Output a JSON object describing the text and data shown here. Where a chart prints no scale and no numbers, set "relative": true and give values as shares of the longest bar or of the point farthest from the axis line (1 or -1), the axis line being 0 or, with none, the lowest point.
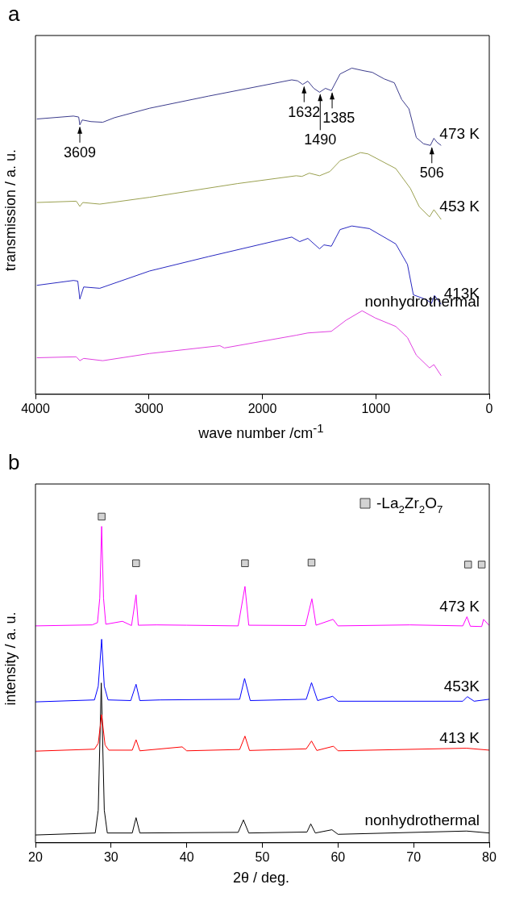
{
  "chart_data": [
    {
      "type": "line",
      "title": "a",
      "xlabel": "wave number /cm$^{-1}$",
      "ylabel": "transmission / a. u.",
      "relative": true,
      "xlim": [
        4000,
        0
      ],
      "xticks": [
        4000,
        3000,
        2000,
        1000,
        0
      ],
      "series": [
        {
          "name": "473 K",
          "color": "#3c3c8c",
          "x": [
            3988,
            3665,
            3619,
            3609,
            3588,
            3510,
            3407,
            3304,
            2994,
            2477,
            1741,
            1689,
            1645,
            1599,
            1547,
            1496,
            1444,
            1392,
            1315,
            1212,
            1108,
            1031,
            927,
            837,
            772,
            708,
            643,
            579,
            519,
            488,
            462,
            424
          ],
          "values": [
            0.844,
            0.853,
            0.85,
            0.826,
            0.841,
            0.836,
            0.834,
            0.848,
            0.877,
            0.914,
            0.964,
            0.961,
            0.95,
            0.96,
            0.938,
            0.926,
            0.938,
            0.931,
            0.982,
            1,
            0.992,
            0.987,
            0.967,
            0.955,
            0.904,
            0.875,
            0.787,
            0.768,
            0.763,
            0.785,
            0.773,
            0.763
          ]
        },
        {
          "name": "453 K",
          "color": "#9aa050",
          "x": [
            3988,
            3640,
            3609,
            3583,
            3433,
            2994,
            2219,
            1702,
            1651,
            1586,
            1496,
            1405,
            1315,
            1134,
            1069,
            824,
            695,
            617,
            527,
            488,
            424
          ],
          "values": [
            0.588,
            0.592,
            0.576,
            0.588,
            0.583,
            0.604,
            0.646,
            0.67,
            0.668,
            0.678,
            0.67,
            0.683,
            0.716,
            0.741,
            0.737,
            0.692,
            0.631,
            0.575,
            0.544,
            0.566,
            0.536
          ]
        },
        {
          "name": "413K",
          "color": "#2828c0",
          "x": [
            3988,
            3665,
            3627,
            3609,
            3575,
            3433,
            2994,
            2477,
            1741,
            1671,
            1599,
            1496,
            1457,
            1392,
            1315,
            1212,
            1057,
            824,
            721,
            669,
            553,
            509,
            483,
            424
          ],
          "values": [
            0.334,
            0.349,
            0.347,
            0.292,
            0.329,
            0.325,
            0.378,
            0.422,
            0.482,
            0.468,
            0.478,
            0.446,
            0.458,
            0.454,
            0.505,
            0.516,
            0.508,
            0.461,
            0.398,
            0.305,
            0.29,
            0.279,
            0.303,
            0.276
          ]
        },
        {
          "name": "nonhydrothermal",
          "color": "#e040e0",
          "x": [
            3988,
            3640,
            3609,
            3575,
            3407,
            2994,
            2374,
            2335,
            1702,
            1599,
            1392,
            1263,
            1121,
            1005,
            824,
            721,
            643,
            527,
            488,
            424
          ],
          "values": [
            0.112,
            0.115,
            0.103,
            0.11,
            0.103,
            0.125,
            0.149,
            0.142,
            0.181,
            0.188,
            0.193,
            0.227,
            0.256,
            0.234,
            0.208,
            0.174,
            0.12,
            0.081,
            0.091,
            0.057
          ]
        }
      ],
      "annotations": [
        {
          "text": "3609",
          "x": 3609,
          "y": 0.826
        },
        {
          "text": "1632",
          "x": 1632,
          "y": 0.95
        },
        {
          "text": "1490",
          "x": 1490,
          "y": 0.926
        },
        {
          "text": "1385",
          "x": 1385,
          "y": 0.931
        },
        {
          "text": "506",
          "x": 506,
          "y": 0.763
        }
      ]
    },
    {
      "type": "line",
      "title": "b",
      "xlabel": "2θ  / deg.",
      "ylabel": "intensity / a. u.",
      "relative": true,
      "xlim": [
        20,
        80
      ],
      "xticks": [
        20,
        30,
        40,
        50,
        60,
        70,
        80
      ],
      "legend": "top right",
      "series": [
        {
          "name": "473 K",
          "color": "#ff00ff",
          "x": [
            20,
            27.5,
            28.2,
            28.5,
            28.75,
            29.0,
            29.3,
            31.5,
            32.7,
            33.3,
            33.6,
            36,
            40,
            46.8,
            47.7,
            48.2,
            55.7,
            56.55,
            57.1,
            59.35,
            60,
            69.5,
            76.5,
            77.05,
            77.5,
            79,
            79.25,
            80
          ],
          "values": [
            0.665,
            0.668,
            0.675,
            0.75,
            0.97,
            0.75,
            0.67,
            0.679,
            0.666,
            0.76,
            0.667,
            0.668,
            0.667,
            0.665,
            0.786,
            0.667,
            0.666,
            0.748,
            0.667,
            0.685,
            0.665,
            0.668,
            0.665,
            0.693,
            0.664,
            0.663,
            0.685,
            0.666
          ]
        },
        {
          "name": "453K",
          "color": "#0000ff",
          "x": [
            20,
            27.8,
            28.3,
            28.75,
            29.1,
            29.6,
            32.6,
            33.3,
            33.8,
            36.5,
            47.0,
            47.65,
            48.4,
            55.8,
            56.5,
            57.3,
            59.3,
            60,
            76.5,
            77.1,
            78,
            80
          ],
          "values": [
            0.432,
            0.438,
            0.48,
            0.624,
            0.48,
            0.438,
            0.436,
            0.486,
            0.436,
            0.438,
            0.44,
            0.504,
            0.436,
            0.44,
            0.491,
            0.436,
            0.449,
            0.434,
            0.434,
            0.448,
            0.434,
            0.44
          ]
        },
        {
          "name": "413 K",
          "color": "#ff0000",
          "x": [
            20,
            27.8,
            28.3,
            28.75,
            29.2,
            29.7,
            32.8,
            33.3,
            33.8,
            39.4,
            40,
            47.0,
            47.7,
            48.3,
            55.8,
            56.5,
            57.2,
            59.4,
            60,
            77,
            80
          ],
          "values": [
            0.281,
            0.287,
            0.305,
            0.393,
            0.3,
            0.284,
            0.284,
            0.316,
            0.282,
            0.294,
            0.282,
            0.286,
            0.327,
            0.283,
            0.288,
            0.312,
            0.283,
            0.296,
            0.282,
            0.29,
            0.284
          ]
        },
        {
          "name": "nonhydrothermal",
          "color": "#000000",
          "x": [
            20,
            27.9,
            28.3,
            28.7,
            29.1,
            29.5,
            32.8,
            33.3,
            33.8,
            46.8,
            47.5,
            48.2,
            55.9,
            56.4,
            57,
            59.2,
            60,
            77,
            80
          ],
          "values": [
            0.024,
            0.03,
            0.1,
            0.49,
            0.1,
            0.03,
            0.03,
            0.077,
            0.03,
            0.032,
            0.07,
            0.03,
            0.033,
            0.058,
            0.03,
            0.04,
            0.026,
            0.036,
            0.03
          ]
        },
        {
          "name": "-La$_{2}$Zr$_{2}$O$_{7}$",
          "type": "scatter",
          "marker": "square",
          "color": "#d3d3d3",
          "x": [
            28.75,
            33.3,
            47.7,
            56.5,
            77.2,
            79.0
          ],
          "values": [
            1,
            0.857,
            0.857,
            0.859,
            0.853,
            0.853
          ]
        }
      ]
    }
  ]
}
